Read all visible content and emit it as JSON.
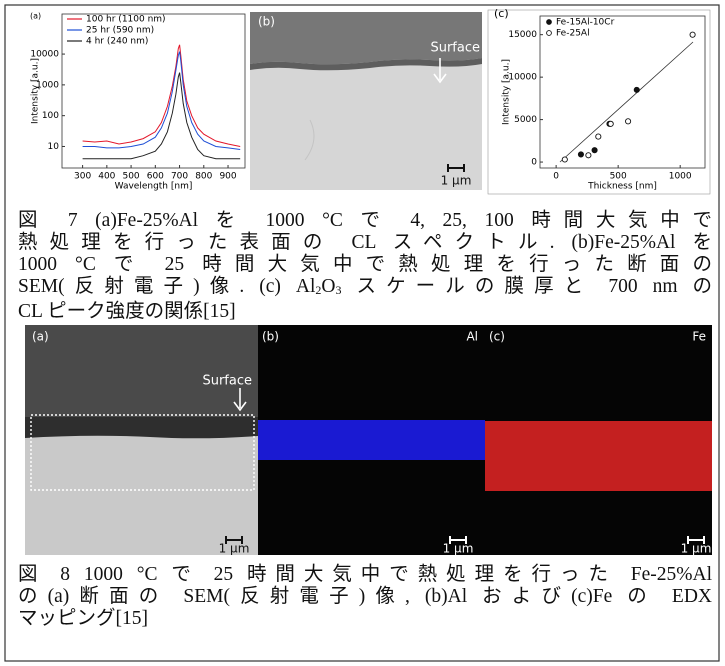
{
  "figure7": {
    "panel_a": {
      "type": "line",
      "label": "(a)",
      "xlabel": "Wavelength [nm]",
      "ylabel": "Intensity [a.u.]",
      "x": [
        300,
        350,
        400,
        450,
        500,
        550,
        600,
        625,
        650,
        670,
        685,
        695,
        700,
        705,
        715,
        730,
        750,
        775,
        800,
        850,
        900,
        950
      ],
      "series": [
        {
          "name": "100 hr (1100 nm)",
          "color": "#e3172a",
          "values": [
            15,
            14,
            15,
            12,
            14,
            18,
            30,
            60,
            200,
            900,
            4000,
            15000,
            20000,
            9000,
            1500,
            300,
            100,
            40,
            25,
            15,
            12,
            10
          ]
        },
        {
          "name": "25 hr (590 nm)",
          "color": "#1f4fd6",
          "values": [
            10,
            10,
            9,
            9,
            10,
            12,
            20,
            40,
            120,
            600,
            3000,
            9000,
            12000,
            6000,
            1000,
            200,
            60,
            25,
            15,
            10,
            9,
            8
          ]
        },
        {
          "name": "4 hr (240 nm)",
          "color": "#222222",
          "values": [
            4,
            4,
            4,
            4,
            4,
            5,
            7,
            12,
            30,
            120,
            500,
            1800,
            2500,
            1200,
            250,
            60,
            20,
            8,
            5,
            4,
            4,
            4
          ]
        }
      ],
      "xlim": [
        215,
        970
      ],
      "xticks": [
        300,
        400,
        500,
        600,
        700,
        800,
        900
      ],
      "ylim": [
        2,
        200000
      ],
      "yticks": [
        10,
        100,
        1000,
        10000
      ],
      "log_y": true
    },
    "panel_b": {
      "label": "(b)",
      "annotation": "Surface",
      "scale_bar": "1 μm"
    },
    "panel_c": {
      "type": "scatter",
      "label": "(c)",
      "xlabel": "Thickness [nm]",
      "ylabel": "Intensity [a.u.]",
      "series": [
        {
          "name": "Fe-15Al-10Cr",
          "color": "#111111",
          "marker": "filled",
          "x": [
            200,
            310,
            430,
            650
          ],
          "y": [
            900,
            1400,
            4500,
            8500
          ]
        },
        {
          "name": "Fe-25Al",
          "color": "#111111",
          "marker": "open",
          "x": [
            70,
            260,
            340,
            440,
            580,
            1100
          ],
          "y": [
            300,
            800,
            3000,
            4500,
            4800,
            15000
          ]
        }
      ],
      "xlim": [
        -130,
        1200
      ],
      "xticks": [
        0,
        500,
        1000
      ],
      "ylim": [
        -700,
        17200
      ],
      "yticks": [
        0,
        5000,
        10000,
        15000
      ]
    },
    "caption": [
      "図 7 (a)Fe-25%Al を 1000 °C で 4, 25, 100 時間大気中で",
      "熱処理を行った表面の CL スペクトル. (b)Fe-25%Al を",
      "1000 °C で 25 時間大気中で熱処理を行った断面の",
      [
        "SEM(反射電子)像. (c) Al",
        "2",
        "O",
        "3",
        " スケールの膜厚と 700 nm の"
      ],
      "CL ピーク強度の関係[15]"
    ]
  },
  "figure8": {
    "panels": [
      {
        "label": "(a)",
        "annotation": "Surface",
        "scale_bar": "1 μm"
      },
      {
        "label": "(b)",
        "element": "Al",
        "scale_bar": "1 μm"
      },
      {
        "label": "(c)",
        "element": "Fe",
        "scale_bar": "1 μm"
      }
    ],
    "caption": [
      "図 8 1000 °C で 25 時間大気中で熱処理を行った Fe-25%Al",
      "の(a)断面の SEM(反射電子)像, (b)Al および(c)Fe の EDX",
      "マッピング[15]"
    ]
  }
}
